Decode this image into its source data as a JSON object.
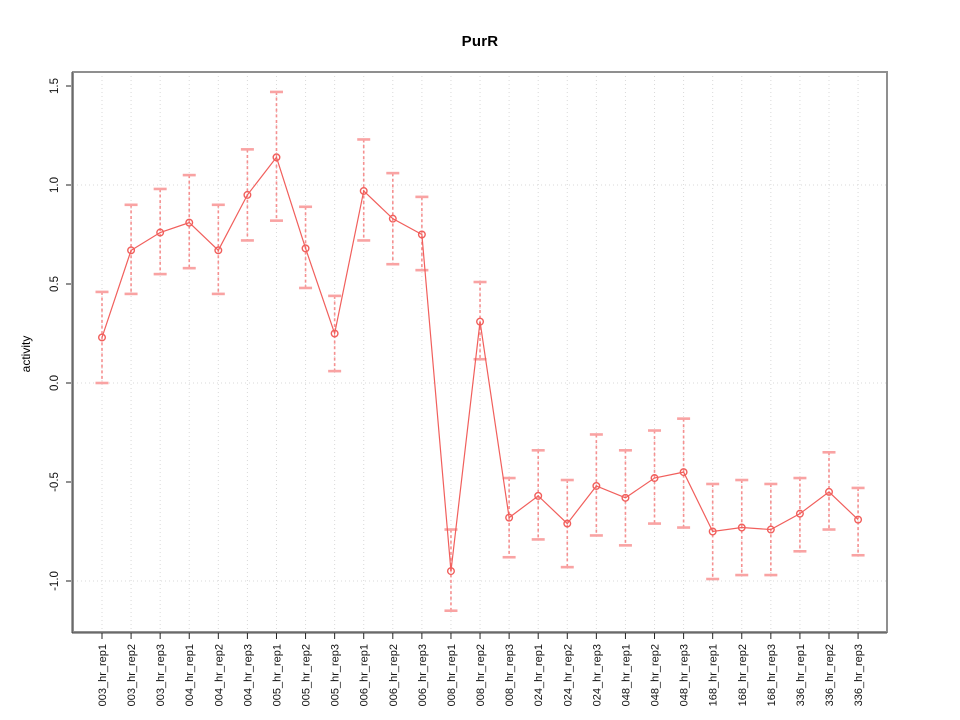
{
  "title": "PurR",
  "axes": {
    "ylabel": "activity",
    "xlabel": "",
    "ytick_labels": [
      "-1.0",
      "-0.5",
      "0.0",
      "0.5",
      "1.0",
      "1.5"
    ]
  },
  "colors": {
    "series_line": "#f15f5c",
    "marker_stroke": "#f15f5c",
    "errorbar_line": "#f59090",
    "errorbar_cap": "#f9a3a3",
    "grid": "#d9d9d9",
    "frame": "#8f8f8f",
    "axis_line": "#444444",
    "tick": "#222222",
    "tick_text": "#111111",
    "background": "#ffffff"
  },
  "chart_data": {
    "type": "line",
    "title": "PurR",
    "xlabel": "",
    "ylabel": "activity",
    "legend_position": "none",
    "marker": "open-circle",
    "error_bars": true,
    "grid_on": true,
    "ylim": [
      -1.26,
      1.58
    ],
    "yticks": [
      -1.0,
      -0.5,
      0.0,
      0.5,
      1.0,
      1.5
    ],
    "hgrid_values": [
      -1.0,
      0.0,
      1.0
    ],
    "categories": [
      "003_hr_rep1",
      "003_hr_rep2",
      "003_hr_rep3",
      "004_hr_rep1",
      "004_hr_rep2",
      "004_hr_rep3",
      "005_hr_rep1",
      "005_hr_rep2",
      "005_hr_rep3",
      "006_hr_rep1",
      "006_hr_rep2",
      "006_hr_rep3",
      "008_hr_rep1",
      "008_hr_rep2",
      "008_hr_rep3",
      "024_hr_rep1",
      "024_hr_rep2",
      "024_hr_rep3",
      "048_hr_rep1",
      "048_hr_rep2",
      "048_hr_rep3",
      "168_hr_rep1",
      "168_hr_rep2",
      "168_hr_rep3",
      "336_hr_rep1",
      "336_hr_rep2",
      "336_hr_rep3"
    ],
    "series": [
      {
        "name": "activity",
        "values": [
          0.23,
          0.67,
          0.76,
          0.81,
          0.67,
          0.95,
          1.14,
          0.68,
          0.25,
          0.97,
          0.83,
          0.75,
          -0.95,
          0.31,
          -0.68,
          -0.57,
          -0.71,
          -0.52,
          -0.58,
          -0.48,
          -0.45,
          -0.75,
          -0.73,
          -0.74,
          -0.66,
          -0.55,
          -0.69
        ],
        "err_high": [
          0.46,
          0.9,
          0.98,
          1.05,
          0.9,
          1.18,
          1.47,
          0.89,
          0.44,
          1.23,
          1.06,
          0.94,
          -0.74,
          0.51,
          -0.48,
          -0.34,
          -0.49,
          -0.26,
          -0.34,
          -0.24,
          -0.18,
          -0.51,
          -0.49,
          -0.51,
          -0.48,
          -0.35,
          -0.53
        ],
        "err_low": [
          0.0,
          0.45,
          0.55,
          0.58,
          0.45,
          0.72,
          0.82,
          0.48,
          0.06,
          0.72,
          0.6,
          0.57,
          -1.15,
          0.12,
          -0.88,
          -0.79,
          -0.93,
          -0.77,
          -0.82,
          -0.71,
          -0.73,
          -0.99,
          -0.97,
          -0.97,
          -0.85,
          -0.74,
          -0.87
        ]
      }
    ]
  }
}
